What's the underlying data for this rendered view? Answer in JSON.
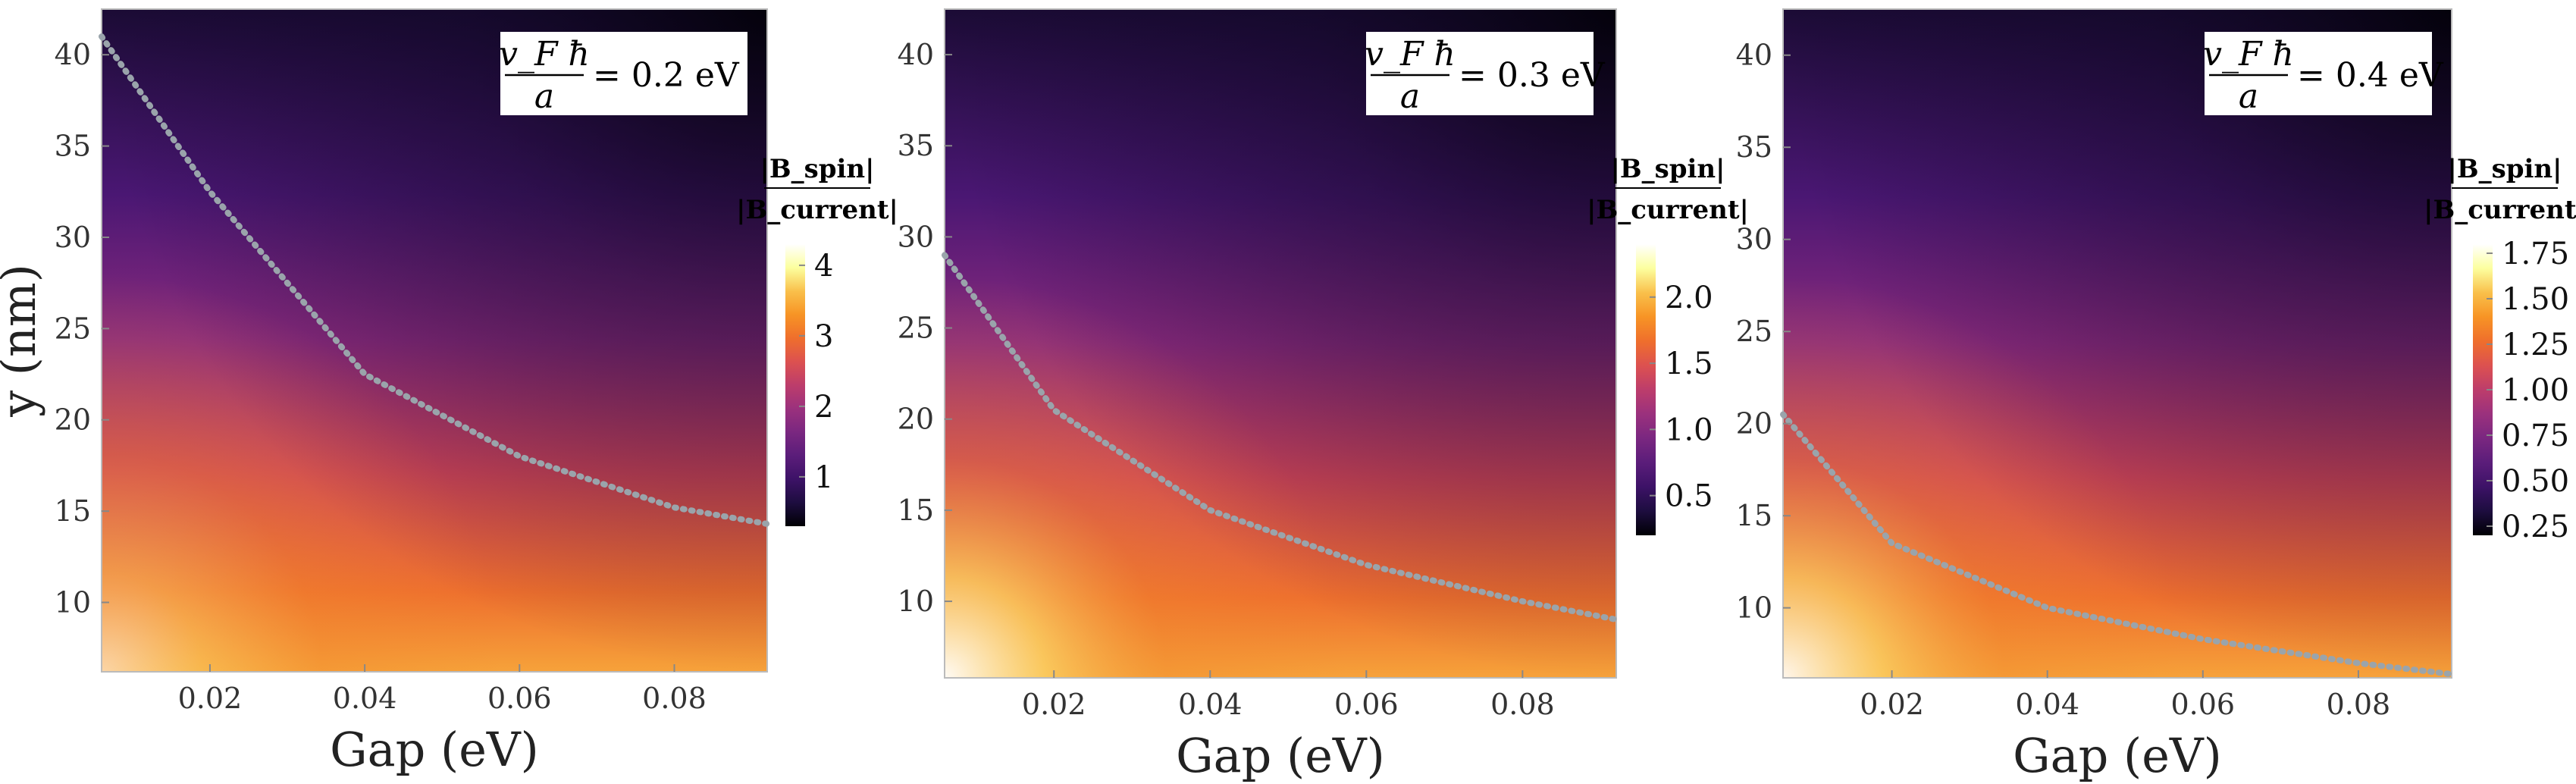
{
  "chart_data": [
    {
      "type": "heatmap",
      "xlabel": "Gap (eV)",
      "ylabel": "y (nm)",
      "xlim": [
        0.006,
        0.092
      ],
      "ylim": [
        6.2,
        42.5
      ],
      "xticks": [
        0.02,
        0.04,
        0.06,
        0.08
      ],
      "xtick_labels": [
        "0.02",
        "0.04",
        "0.06",
        "0.08"
      ],
      "yticks": [
        10,
        15,
        20,
        25,
        30,
        35,
        40
      ],
      "ytick_labels": [
        "10",
        "15",
        "20",
        "25",
        "30",
        "35",
        "40"
      ],
      "annotation": {
        "numerator": "v_F ħ",
        "denominator": "a",
        "value": "= 0.2 eV"
      },
      "colorbar": {
        "title_top": "|B_spin|",
        "title_bottom": "|B_current|",
        "range": [
          0.3,
          4.3
        ],
        "ticks": [
          1,
          2,
          3,
          4
        ],
        "tick_labels": [
          "1",
          "2",
          "3",
          "4"
        ]
      },
      "contour": {
        "value": 1,
        "style": "dotted",
        "color": "#9aa4ab",
        "points": [
          [
            0.006,
            41.0
          ],
          [
            0.02,
            32.5
          ],
          [
            0.04,
            22.5
          ],
          [
            0.06,
            18.0
          ],
          [
            0.08,
            15.2
          ],
          [
            0.092,
            14.3
          ]
        ]
      }
    },
    {
      "type": "heatmap",
      "xlabel": "Gap (eV)",
      "ylabel": "",
      "xlim": [
        0.006,
        0.092
      ],
      "ylim": [
        5.8,
        42.5
      ],
      "xticks": [
        0.02,
        0.04,
        0.06,
        0.08
      ],
      "xtick_labels": [
        "0.02",
        "0.04",
        "0.06",
        "0.08"
      ],
      "yticks": [
        10,
        15,
        20,
        25,
        30,
        35,
        40
      ],
      "ytick_labels": [
        "10",
        "15",
        "20",
        "25",
        "30",
        "35",
        "40"
      ],
      "annotation": {
        "numerator": "v_F ħ",
        "denominator": "a",
        "value": "= 0.3 eV"
      },
      "colorbar": {
        "title_top": "|B_spin|",
        "title_bottom": "|B_current|",
        "range": [
          0.2,
          2.4
        ],
        "ticks": [
          0.5,
          1.0,
          1.5,
          2.0
        ],
        "tick_labels": [
          "0.5",
          "1.0",
          "1.5",
          "2.0"
        ]
      },
      "contour": {
        "value": 1,
        "style": "dotted",
        "color": "#9aa4ab",
        "points": [
          [
            0.006,
            29.0
          ],
          [
            0.02,
            20.5
          ],
          [
            0.04,
            15.0
          ],
          [
            0.06,
            12.0
          ],
          [
            0.08,
            10.0
          ],
          [
            0.092,
            9.0
          ]
        ]
      }
    },
    {
      "type": "heatmap",
      "xlabel": "Gap (eV)",
      "ylabel": "",
      "xlim": [
        0.006,
        0.092
      ],
      "ylim": [
        6.2,
        42.5
      ],
      "xticks": [
        0.02,
        0.04,
        0.06,
        0.08
      ],
      "xtick_labels": [
        "0.02",
        "0.04",
        "0.06",
        "0.08"
      ],
      "yticks": [
        10,
        15,
        20,
        25,
        30,
        35,
        40
      ],
      "ytick_labels": [
        "10",
        "15",
        "20",
        "25",
        "30",
        "35",
        "40"
      ],
      "annotation": {
        "numerator": "v_F ħ",
        "denominator": "a",
        "value": "= 0.4 eV"
      },
      "colorbar": {
        "title_top": "|B_spin|",
        "title_bottom": "|B_current|",
        "range": [
          0.2,
          1.8
        ],
        "ticks": [
          0.25,
          0.5,
          0.75,
          1.0,
          1.25,
          1.5,
          1.75
        ],
        "tick_labels": [
          "0.25",
          "0.50",
          "0.75",
          "1.00",
          "1.25",
          "1.50",
          "1.75"
        ]
      },
      "contour": {
        "value": 1,
        "style": "dotted",
        "color": "#9aa4ab",
        "points": [
          [
            0.006,
            20.5
          ],
          [
            0.02,
            13.5
          ],
          [
            0.04,
            10.0
          ],
          [
            0.06,
            8.3
          ],
          [
            0.08,
            7.0
          ],
          [
            0.092,
            6.4
          ]
        ]
      }
    }
  ],
  "colormap": [
    "#000004",
    "#1d0d3f",
    "#3d1267",
    "#5b1d7a",
    "#7a2780",
    "#9b317d",
    "#bd3d6b",
    "#dc5150",
    "#ef6f2c",
    "#f79425",
    "#f9c04b",
    "#fcff9f",
    "#ffffff"
  ]
}
